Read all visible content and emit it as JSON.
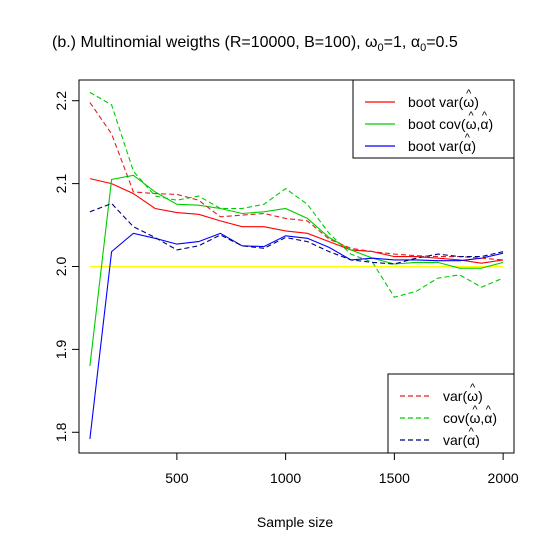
{
  "chart_data": {
    "type": "line",
    "title": "(b.) Multinomial weigths (R=10000, B=100), ω0=1, α0=0.5",
    "title_parts": {
      "prefix": "(b.) Multinomial weigths (R=10000, B=100), ",
      "omega": "ω",
      "omega_sub": "0",
      "omega_val": "=1, ",
      "alpha": "α",
      "alpha_sub": "0",
      "alpha_val": "=0.5"
    },
    "xlabel": "Sample size",
    "ylabel": "",
    "xlim": [
      50,
      2050
    ],
    "ylim": [
      1.775,
      2.225
    ],
    "xticks": [
      500,
      1000,
      1500,
      2000
    ],
    "xtick_labels": [
      "500",
      "1000",
      "1500",
      "2000"
    ],
    "yticks": [
      1.8,
      1.9,
      2.0,
      2.1,
      2.2
    ],
    "ytick_labels": [
      "1.8",
      "1.9",
      "2.0",
      "2.1",
      "2.2"
    ],
    "grid": false,
    "reference_line": {
      "y": 2.0,
      "color": "#ffff00"
    },
    "x": [
      100,
      200,
      300,
      400,
      500,
      600,
      700,
      800,
      900,
      1000,
      1100,
      1200,
      1300,
      1400,
      1500,
      1600,
      1700,
      1800,
      1900,
      2000
    ],
    "series": [
      {
        "name": "boot var(ω̂)",
        "color": "#ff0000",
        "dash": false,
        "values": [
          2.106,
          2.1,
          2.088,
          2.07,
          2.065,
          2.063,
          2.055,
          2.048,
          2.048,
          2.043,
          2.04,
          2.03,
          2.02,
          2.018,
          2.012,
          2.012,
          2.01,
          2.008,
          2.004,
          2.008
        ]
      },
      {
        "name": "boot cov(ω̂,α̂)",
        "color": "#00cd00",
        "dash": false,
        "values": [
          1.88,
          2.105,
          2.11,
          2.09,
          2.075,
          2.074,
          2.07,
          2.064,
          2.066,
          2.07,
          2.058,
          2.035,
          2.02,
          2.01,
          2.003,
          2.005,
          2.005,
          1.998,
          1.998,
          2.005
        ]
      },
      {
        "name": "boot var(α̂)",
        "color": "#0000ff",
        "dash": false,
        "values": [
          1.792,
          2.018,
          2.04,
          2.034,
          2.027,
          2.03,
          2.04,
          2.025,
          2.024,
          2.037,
          2.034,
          2.023,
          2.008,
          2.01,
          2.008,
          2.008,
          2.007,
          2.007,
          2.01,
          2.016
        ]
      },
      {
        "name": "var(ω̂)",
        "color": "#dd2222",
        "dash": true,
        "values": [
          2.198,
          2.16,
          2.09,
          2.088,
          2.087,
          2.08,
          2.06,
          2.062,
          2.064,
          2.058,
          2.055,
          2.033,
          2.022,
          2.018,
          2.015,
          2.013,
          2.012,
          2.012,
          2.01,
          2.008
        ]
      },
      {
        "name": "cov(ω̂,α̂)",
        "color": "#00cd00",
        "dash": true,
        "values": [
          2.21,
          2.195,
          2.115,
          2.085,
          2.08,
          2.085,
          2.07,
          2.07,
          2.075,
          2.094,
          2.075,
          2.04,
          2.015,
          2.005,
          1.963,
          1.97,
          1.986,
          1.99,
          1.975,
          1.986
        ]
      },
      {
        "name": "var(α̂)",
        "color": "#000080",
        "dash": true,
        "values": [
          2.066,
          2.076,
          2.048,
          2.035,
          2.02,
          2.025,
          2.038,
          2.025,
          2.022,
          2.035,
          2.03,
          2.018,
          2.008,
          2.005,
          2.003,
          2.01,
          2.015,
          2.012,
          2.012,
          2.018
        ]
      }
    ],
    "legends": [
      {
        "placement": "top-right",
        "line_style": "solid",
        "entries": [
          {
            "func": "boot var(",
            "a": "ω",
            "b": "",
            "close": ")",
            "color": "#ff0000"
          },
          {
            "func": "boot cov(",
            "a": "ω",
            "b": "α",
            "close": ")",
            "color": "#00cd00"
          },
          {
            "func": "boot var(",
            "a": "α",
            "b": "",
            "close": ")",
            "color": "#0000ff"
          }
        ]
      },
      {
        "placement": "bottom-right",
        "line_style": "dashed",
        "entries": [
          {
            "func": "var(",
            "a": "ω",
            "b": "",
            "close": ")",
            "color": "#dd2222"
          },
          {
            "func": "cov(",
            "a": "ω",
            "b": "α",
            "close": ")",
            "color": "#00cd00"
          },
          {
            "func": "var(",
            "a": "α",
            "b": "",
            "close": ")",
            "color": "#000080"
          }
        ]
      }
    ],
    "hat_symbol": "^",
    "comma": ","
  }
}
